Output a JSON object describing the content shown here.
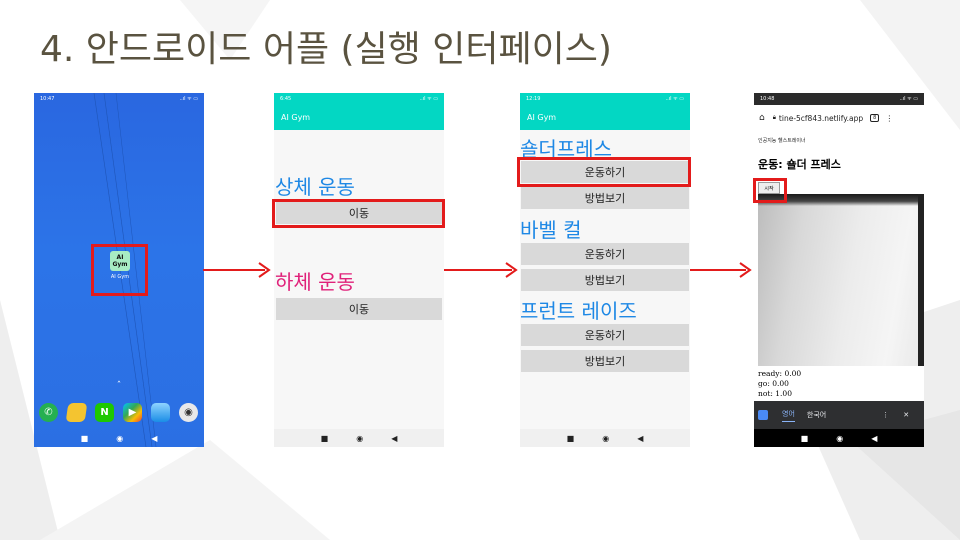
{
  "slide": {
    "title": "4. 안드로이드 어플 (실행 인터페이스)"
  },
  "colors": {
    "accent_red": "#e31b1b",
    "teal": "#03d7c3",
    "blue": "#1e88e5",
    "pink": "#e0217a"
  },
  "phone1": {
    "time": "10:47",
    "status_right": "..ıl ᯤ ▭",
    "app_icon_text": "AI\nGym",
    "app_label": "AI Gym",
    "chevron": "ˆ",
    "dock": [
      "phone-icon",
      "notes-icon",
      "naver-icon",
      "play-store-icon",
      "gallery-icon",
      "camera-icon"
    ],
    "dock_glyphs": [
      "✆",
      "",
      "N",
      "▶",
      "",
      "◉"
    ],
    "nav": [
      "■",
      "◉",
      "◀"
    ]
  },
  "phone2": {
    "time": "6:45",
    "app_title": "AI Gym",
    "upper_title": "상체 운동",
    "upper_button": "이동",
    "lower_title": "하체 운동",
    "lower_button": "이동",
    "nav": [
      "■",
      "◉",
      "◀"
    ]
  },
  "phone3": {
    "time": "12:19",
    "app_title": "AI Gym",
    "exercises": [
      {
        "title": "숄더프레스",
        "do": "운동하기",
        "how": "방법보기"
      },
      {
        "title": "바벨 컬",
        "do": "운동하기",
        "how": "방법보기"
      },
      {
        "title": "프런트 레이즈",
        "do": "운동하기",
        "how": "방법보기"
      }
    ],
    "nav": [
      "■",
      "◉",
      "◀"
    ]
  },
  "phone4": {
    "time": "10:48",
    "url": "tine-5cf843.netlify.app",
    "tab_count": "8",
    "page_caption": "인공지능 헬스트레이너",
    "heading": "운동: 숄더 프레스",
    "start_button": "시작",
    "readouts": [
      "ready: 0.00",
      "go: 0.00",
      "not: 1.00"
    ],
    "translate_tabs": [
      "영어",
      "한국어"
    ],
    "translate_menu": "⋮",
    "translate_close": "✕",
    "nav": [
      "■",
      "◉",
      "◀"
    ]
  }
}
